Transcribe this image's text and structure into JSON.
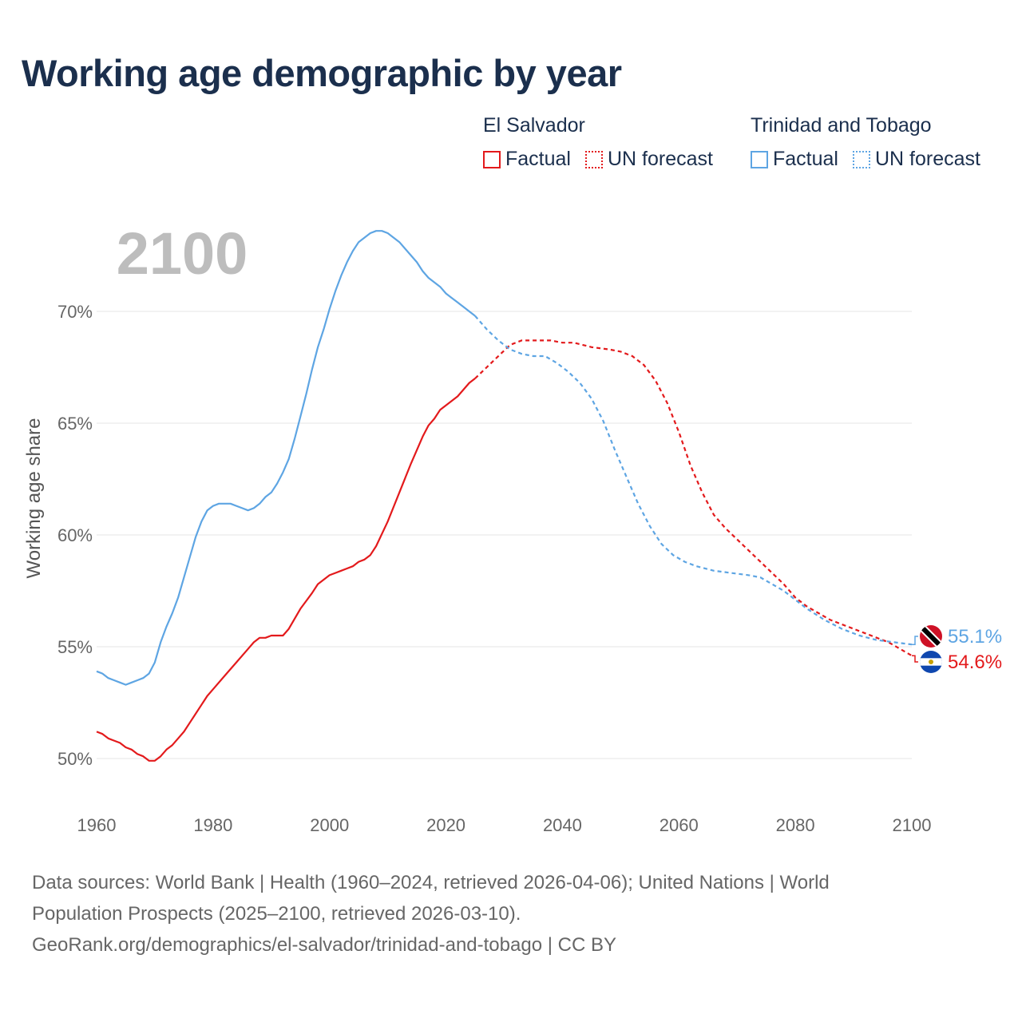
{
  "title": "Working age demographic by year",
  "legend": {
    "groups": [
      {
        "country": "El Salvador",
        "factual_label": "Factual",
        "forecast_label": "UN forecast",
        "color": "#e31a1c"
      },
      {
        "country": "Trinidad and Tobago",
        "factual_label": "Factual",
        "forecast_label": "UN forecast",
        "color": "#5ea5e3"
      }
    ]
  },
  "chart_data": {
    "type": "line",
    "title": "Working age demographic by year",
    "year_label": "2100",
    "xlabel": "",
    "ylabel": "Working age share",
    "xlim": [
      1960,
      2100
    ],
    "ylim": [
      48.5,
      73.5
    ],
    "x_ticks": [
      1960,
      1980,
      2000,
      2020,
      2040,
      2060,
      2080,
      2100
    ],
    "x_tick_labels": [
      "1960",
      "1980",
      "2000",
      "2020",
      "2040",
      "2060",
      "2080",
      "2100"
    ],
    "y_ticks": [
      50,
      55,
      60,
      65,
      70
    ],
    "y_tick_labels": [
      "50%",
      "55%",
      "60%",
      "65%",
      "70%"
    ],
    "grid": true,
    "factual_end_year": 2025,
    "series": [
      {
        "name": "El Salvador",
        "color": "#e31a1c",
        "end_label": "54.6%",
        "points": [
          [
            1960,
            51.2
          ],
          [
            1961,
            51.1
          ],
          [
            1962,
            50.9
          ],
          [
            1963,
            50.8
          ],
          [
            1964,
            50.7
          ],
          [
            1965,
            50.5
          ],
          [
            1966,
            50.4
          ],
          [
            1967,
            50.2
          ],
          [
            1968,
            50.1
          ],
          [
            1969,
            49.9
          ],
          [
            1970,
            49.9
          ],
          [
            1971,
            50.1
          ],
          [
            1972,
            50.4
          ],
          [
            1973,
            50.6
          ],
          [
            1974,
            50.9
          ],
          [
            1975,
            51.2
          ],
          [
            1976,
            51.6
          ],
          [
            1977,
            52.0
          ],
          [
            1978,
            52.4
          ],
          [
            1979,
            52.8
          ],
          [
            1980,
            53.1
          ],
          [
            1982,
            53.7
          ],
          [
            1984,
            54.3
          ],
          [
            1986,
            54.9
          ],
          [
            1987,
            55.2
          ],
          [
            1988,
            55.4
          ],
          [
            1989,
            55.4
          ],
          [
            1990,
            55.5
          ],
          [
            1992,
            55.5
          ],
          [
            1993,
            55.8
          ],
          [
            1995,
            56.7
          ],
          [
            1997,
            57.4
          ],
          [
            1998,
            57.8
          ],
          [
            1999,
            58.0
          ],
          [
            2000,
            58.2
          ],
          [
            2001,
            58.3
          ],
          [
            2002,
            58.4
          ],
          [
            2003,
            58.5
          ],
          [
            2004,
            58.6
          ],
          [
            2005,
            58.8
          ],
          [
            2006,
            58.9
          ],
          [
            2007,
            59.1
          ],
          [
            2008,
            59.5
          ],
          [
            2010,
            60.6
          ],
          [
            2012,
            61.9
          ],
          [
            2014,
            63.2
          ],
          [
            2016,
            64.4
          ],
          [
            2017,
            64.9
          ],
          [
            2018,
            65.2
          ],
          [
            2019,
            65.6
          ],
          [
            2020,
            65.8
          ],
          [
            2021,
            66.0
          ],
          [
            2022,
            66.2
          ],
          [
            2024,
            66.8
          ],
          [
            2025,
            67.0
          ],
          [
            2027,
            67.5
          ],
          [
            2029,
            68.0
          ],
          [
            2031,
            68.5
          ],
          [
            2033,
            68.7
          ],
          [
            2036,
            68.7
          ],
          [
            2038,
            68.7
          ],
          [
            2040,
            68.6
          ],
          [
            2042,
            68.6
          ],
          [
            2045,
            68.4
          ],
          [
            2048,
            68.3
          ],
          [
            2050,
            68.2
          ],
          [
            2052,
            68.0
          ],
          [
            2054,
            67.6
          ],
          [
            2056,
            66.9
          ],
          [
            2058,
            65.9
          ],
          [
            2060,
            64.6
          ],
          [
            2062,
            63.1
          ],
          [
            2064,
            61.9
          ],
          [
            2066,
            60.9
          ],
          [
            2068,
            60.3
          ],
          [
            2070,
            59.8
          ],
          [
            2072,
            59.3
          ],
          [
            2074,
            58.8
          ],
          [
            2076,
            58.3
          ],
          [
            2078,
            57.8
          ],
          [
            2080,
            57.2
          ],
          [
            2082,
            56.8
          ],
          [
            2084,
            56.5
          ],
          [
            2086,
            56.2
          ],
          [
            2088,
            56.0
          ],
          [
            2090,
            55.8
          ],
          [
            2092,
            55.6
          ],
          [
            2094,
            55.4
          ],
          [
            2096,
            55.2
          ],
          [
            2098,
            54.9
          ],
          [
            2100,
            54.6
          ]
        ]
      },
      {
        "name": "Trinidad and Tobago",
        "color": "#5ea5e3",
        "end_label": "55.1%",
        "points": [
          [
            1960,
            53.9
          ],
          [
            1961,
            53.8
          ],
          [
            1962,
            53.6
          ],
          [
            1963,
            53.5
          ],
          [
            1964,
            53.4
          ],
          [
            1965,
            53.3
          ],
          [
            1966,
            53.4
          ],
          [
            1967,
            53.5
          ],
          [
            1968,
            53.6
          ],
          [
            1969,
            53.8
          ],
          [
            1970,
            54.3
          ],
          [
            1971,
            55.2
          ],
          [
            1972,
            55.9
          ],
          [
            1973,
            56.5
          ],
          [
            1974,
            57.2
          ],
          [
            1975,
            58.1
          ],
          [
            1976,
            59.0
          ],
          [
            1977,
            59.9
          ],
          [
            1978,
            60.6
          ],
          [
            1979,
            61.1
          ],
          [
            1980,
            61.3
          ],
          [
            1981,
            61.4
          ],
          [
            1983,
            61.4
          ],
          [
            1984,
            61.3
          ],
          [
            1985,
            61.2
          ],
          [
            1986,
            61.1
          ],
          [
            1987,
            61.2
          ],
          [
            1988,
            61.4
          ],
          [
            1989,
            61.7
          ],
          [
            1990,
            61.9
          ],
          [
            1991,
            62.3
          ],
          [
            1992,
            62.8
          ],
          [
            1993,
            63.4
          ],
          [
            1994,
            64.3
          ],
          [
            1995,
            65.3
          ],
          [
            1996,
            66.3
          ],
          [
            1997,
            67.4
          ],
          [
            1998,
            68.4
          ],
          [
            1999,
            69.2
          ],
          [
            2000,
            70.1
          ],
          [
            2001,
            70.9
          ],
          [
            2002,
            71.6
          ],
          [
            2003,
            72.2
          ],
          [
            2004,
            72.7
          ],
          [
            2005,
            73.1
          ],
          [
            2006,
            73.3
          ],
          [
            2007,
            73.5
          ],
          [
            2008,
            73.6
          ],
          [
            2009,
            73.6
          ],
          [
            2010,
            73.5
          ],
          [
            2011,
            73.3
          ],
          [
            2012,
            73.1
          ],
          [
            2013,
            72.8
          ],
          [
            2014,
            72.5
          ],
          [
            2015,
            72.2
          ],
          [
            2016,
            71.8
          ],
          [
            2017,
            71.5
          ],
          [
            2018,
            71.3
          ],
          [
            2019,
            71.1
          ],
          [
            2020,
            70.8
          ],
          [
            2021,
            70.6
          ],
          [
            2022,
            70.4
          ],
          [
            2023,
            70.2
          ],
          [
            2024,
            70.0
          ],
          [
            2025,
            69.8
          ],
          [
            2027,
            69.2
          ],
          [
            2029,
            68.7
          ],
          [
            2031,
            68.3
          ],
          [
            2033,
            68.1
          ],
          [
            2035,
            68.0
          ],
          [
            2037,
            68.0
          ],
          [
            2039,
            67.7
          ],
          [
            2041,
            67.3
          ],
          [
            2043,
            66.8
          ],
          [
            2045,
            66.1
          ],
          [
            2047,
            65.1
          ],
          [
            2049,
            63.8
          ],
          [
            2051,
            62.6
          ],
          [
            2053,
            61.4
          ],
          [
            2055,
            60.4
          ],
          [
            2057,
            59.6
          ],
          [
            2059,
            59.1
          ],
          [
            2061,
            58.8
          ],
          [
            2063,
            58.6
          ],
          [
            2066,
            58.4
          ],
          [
            2069,
            58.3
          ],
          [
            2072,
            58.2
          ],
          [
            2074,
            58.1
          ],
          [
            2076,
            57.8
          ],
          [
            2078,
            57.5
          ],
          [
            2080,
            57.1
          ],
          [
            2082,
            56.7
          ],
          [
            2085,
            56.2
          ],
          [
            2088,
            55.8
          ],
          [
            2091,
            55.5
          ],
          [
            2094,
            55.3
          ],
          [
            2097,
            55.2
          ],
          [
            2100,
            55.1
          ]
        ]
      }
    ]
  },
  "sources": {
    "line1": "Data sources: World Bank | Health (1960–2024, retrieved 2026-04-06); United Nations | World",
    "line2": "Population Prospects (2025–2100, retrieved 2026-03-10).",
    "line3": "GeoRank.org/demographics/el-salvador/trinidad-and-tobago | CC BY"
  }
}
